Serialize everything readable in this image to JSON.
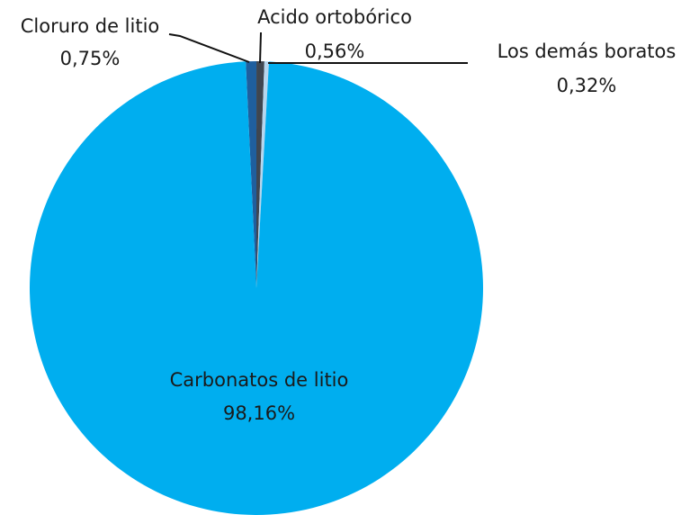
{
  "chart_data": {
    "type": "pie",
    "categories": [
      "Cloruro de litio",
      "Acido ortobórico",
      "Los demás boratos",
      "Carbonatos de litio"
    ],
    "values": [
      0.75,
      0.56,
      0.32,
      98.16
    ],
    "value_labels": [
      "0,75%",
      "0,56%",
      "0,32%",
      "98,16%"
    ],
    "colors": [
      "#1f5f9e",
      "#3f4650",
      "#b6d6ee",
      "#00aeef"
    ]
  }
}
